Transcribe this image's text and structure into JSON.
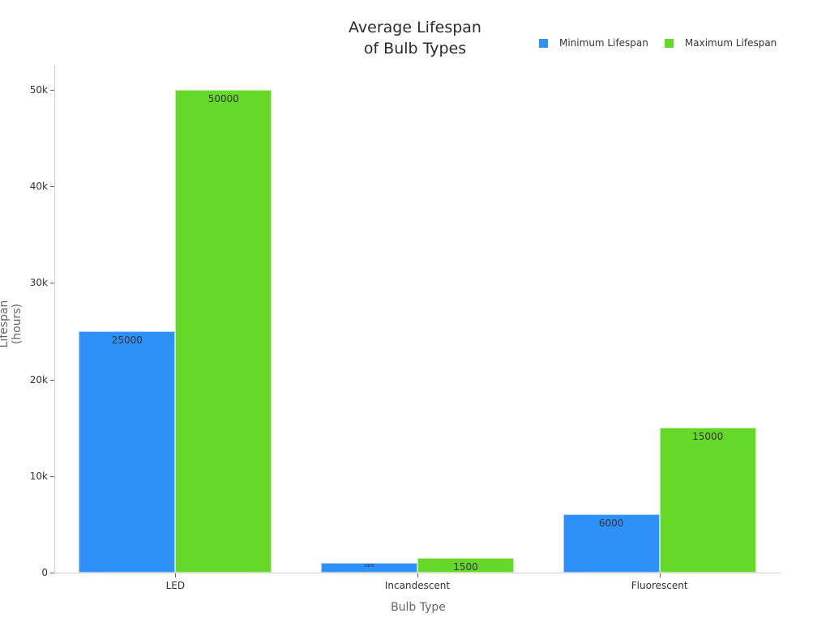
{
  "chart_data": {
    "type": "bar",
    "title": "Average Lifespan\nof Bulb Types",
    "title_lines": [
      "Average Lifespan",
      "of Bulb Types"
    ],
    "xlabel": "Bulb Type",
    "ylabel": "Lifespan (hours)",
    "categories": [
      "LED",
      "Incandescent",
      "Fluorescent"
    ],
    "series": [
      {
        "name": "Minimum Lifespan",
        "color": "#2e91fa",
        "values": [
          25000,
          1000,
          6000
        ]
      },
      {
        "name": "Maximum Lifespan",
        "color": "#66d928",
        "values": [
          50000,
          1500,
          15000
        ]
      }
    ],
    "ylim": [
      0,
      52500
    ],
    "yticks": [
      0,
      10000,
      20000,
      30000,
      40000,
      50000
    ],
    "ytick_labels": [
      "0",
      "10k",
      "20k",
      "30k",
      "40k",
      "50k"
    ],
    "grid": false,
    "legend_position": "top-right",
    "data_labels": true
  }
}
